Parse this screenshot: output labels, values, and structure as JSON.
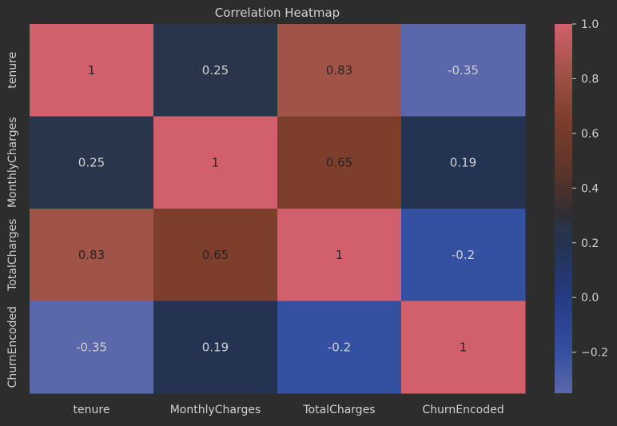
{
  "chart_data": {
    "type": "heatmap",
    "title": "Correlation Heatmap",
    "x_categories": [
      "tenure",
      "MonthlyCharges",
      "TotalCharges",
      "ChurnEncoded"
    ],
    "y_categories": [
      "tenure",
      "MonthlyCharges",
      "TotalCharges",
      "ChurnEncoded"
    ],
    "values": [
      [
        1,
        0.25,
        0.83,
        -0.35
      ],
      [
        0.25,
        1,
        0.65,
        0.19
      ],
      [
        0.83,
        0.65,
        1,
        -0.2
      ],
      [
        -0.35,
        0.19,
        -0.2,
        1
      ]
    ],
    "value_labels": [
      [
        "1",
        "0.25",
        "0.83",
        "-0.35"
      ],
      [
        "0.25",
        "1",
        "0.65",
        "0.19"
      ],
      [
        "0.83",
        "0.65",
        "1",
        "-0.2"
      ],
      [
        "-0.35",
        "0.19",
        "-0.2",
        "1"
      ]
    ],
    "colorbar": {
      "range": [
        -0.35,
        1.0
      ],
      "ticks": [
        -0.2,
        0.0,
        0.2,
        0.4,
        0.6,
        0.8,
        1.0
      ],
      "tick_labels": [
        "−0.2",
        "0.0",
        "0.2",
        "0.4",
        "0.6",
        "0.8",
        "1.0"
      ],
      "colormap_stops": [
        {
          "value": -0.35,
          "color": "#5b67ab"
        },
        {
          "value": -0.2,
          "color": "#3450a1"
        },
        {
          "value": 0.0,
          "color": "#263b84"
        },
        {
          "value": 0.19,
          "color": "#243352"
        },
        {
          "value": 0.25,
          "color": "#29354a"
        },
        {
          "value": 0.3,
          "color": "#2e2e35"
        },
        {
          "value": 0.45,
          "color": "#5b342a"
        },
        {
          "value": 0.65,
          "color": "#7d3e2b"
        },
        {
          "value": 0.83,
          "color": "#a25348"
        },
        {
          "value": 1.0,
          "color": "#d2606c"
        }
      ]
    },
    "grid": false,
    "text_color_light": "#d0d0d0",
    "text_color_dark": "#262626"
  }
}
